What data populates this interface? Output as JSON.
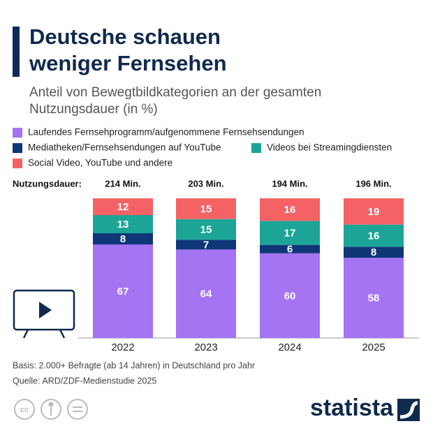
{
  "chart_data": {
    "type": "stacked_bar",
    "title": "Deutsche schauen weniger Fernsehen",
    "subtitle": "Anteil von Bewegtbildkategorien an der gesamten Nutzungsdauer (in %)",
    "categories": [
      "2022",
      "2023",
      "2024",
      "2025"
    ],
    "series": [
      {
        "name": "Laufendes Fernsehprogramm/aufgenommene Fernsehsendungen",
        "color": "#a474f2",
        "values": [
          67,
          64,
          60,
          58
        ]
      },
      {
        "name": "Mediatheken/Fernsehsendungen auf YouTube",
        "color": "#0f3677",
        "values": [
          8,
          7,
          6,
          8
        ]
      },
      {
        "name": "Videos bei Streamingdiensten",
        "color": "#1ca597",
        "values": [
          13,
          15,
          17,
          16
        ]
      },
      {
        "name": "Social Video, YouTube und andere",
        "color": "#f46266",
        "values": [
          12,
          15,
          16,
          19
        ]
      }
    ],
    "total_title": "Nutzungsdauer:",
    "total_labels": [
      "214 Min.",
      "203 Min.",
      "194 Min.",
      "196 Min."
    ],
    "notes": [
      "Basis: 2.000+ Befragte (ab 14 Jahren) in Deutschland pro Jahr",
      "Quelle: ARD/ZDF-Medienstudie 2025"
    ],
    "brand": "statista"
  }
}
